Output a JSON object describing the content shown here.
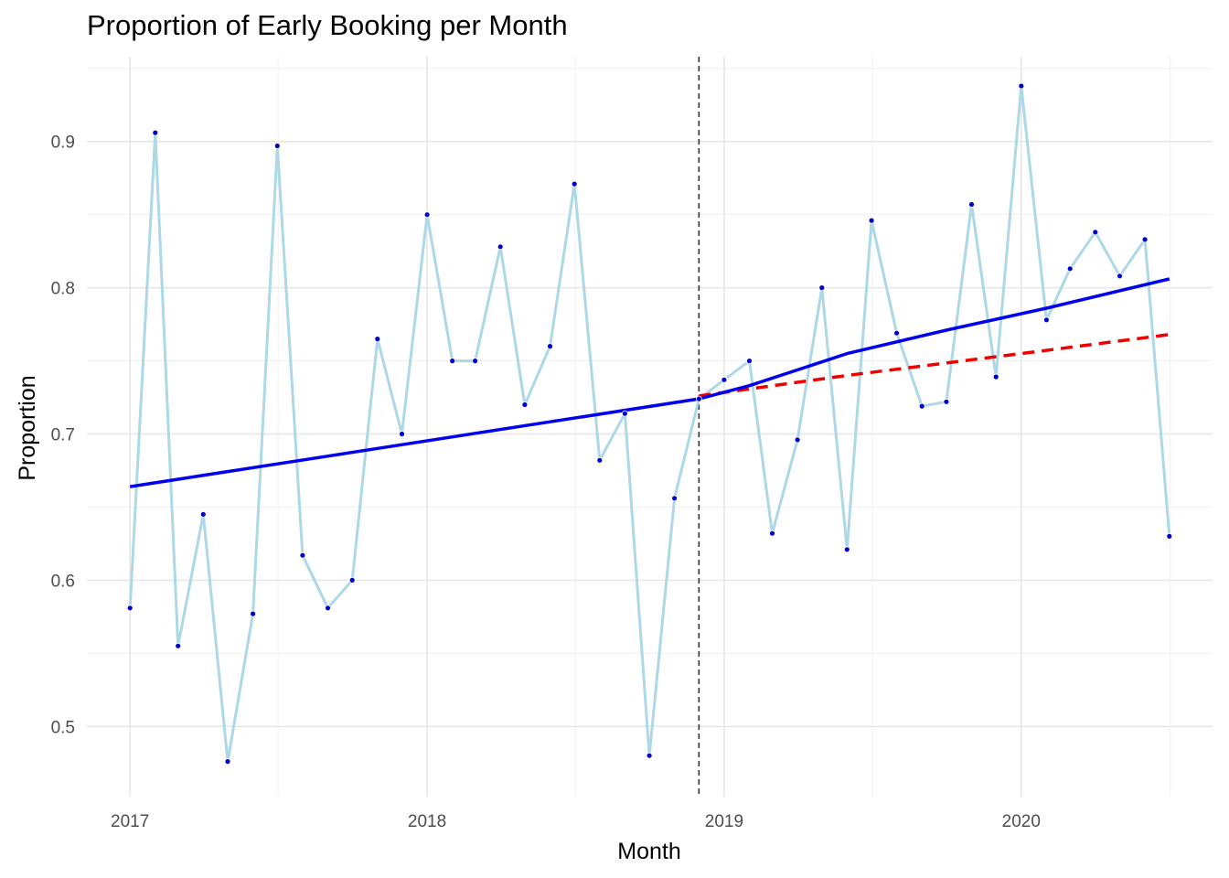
{
  "chart_data": {
    "type": "line",
    "title": "Proportion of Early Booking per Month",
    "xlabel": "Month",
    "ylabel": "Proportion",
    "x_tick_labels": [
      "2017",
      "2018",
      "2019",
      "2020"
    ],
    "y_tick_labels": [
      "0.5",
      "0.6",
      "0.7",
      "0.8",
      "0.9"
    ],
    "x_range": [
      "2016-11-09",
      "2020-08-23"
    ],
    "y_range": [
      0.452,
      0.958
    ],
    "grid": true,
    "intervention_date": "2018-12-01",
    "series": [
      {
        "role": "observed",
        "line_color": "#add8e6",
        "point_color": "#0000cd",
        "x": [
          "2017-01",
          "2017-02",
          "2017-03",
          "2017-04",
          "2017-05",
          "2017-06",
          "2017-07",
          "2017-08",
          "2017-09",
          "2017-10",
          "2017-11",
          "2017-12",
          "2018-01",
          "2018-02",
          "2018-03",
          "2018-04",
          "2018-05",
          "2018-06",
          "2018-07",
          "2018-08",
          "2018-09",
          "2018-10",
          "2018-11",
          "2018-12",
          "2019-01",
          "2019-02",
          "2019-03",
          "2019-04",
          "2019-05",
          "2019-06",
          "2019-07",
          "2019-08",
          "2019-09",
          "2019-10",
          "2019-11",
          "2019-12",
          "2020-01",
          "2020-02",
          "2020-03",
          "2020-04",
          "2020-05",
          "2020-06",
          "2020-07"
        ],
        "values": [
          0.581,
          0.906,
          0.555,
          0.645,
          0.476,
          0.577,
          0.897,
          0.617,
          0.581,
          0.6,
          0.765,
          0.7,
          0.85,
          0.75,
          0.75,
          0.828,
          0.72,
          0.76,
          0.871,
          0.682,
          0.714,
          0.48,
          0.656,
          0.724,
          0.737,
          0.75,
          0.632,
          0.696,
          0.8,
          0.621,
          0.846,
          0.769,
          0.719,
          0.722,
          0.857,
          0.739,
          0.938,
          0.778,
          0.813,
          0.838,
          0.808,
          0.833,
          0.63
        ]
      },
      {
        "role": "fitted trend",
        "line_color": "#0000ee",
        "style": "solid",
        "x": [
          "2017-01",
          "2018-12",
          "2019-02",
          "2019-06",
          "2019-10",
          "2020-02",
          "2020-07"
        ],
        "values": [
          0.664,
          0.724,
          0.733,
          0.755,
          0.771,
          0.786,
          0.806
        ]
      },
      {
        "role": "counterfactual trend",
        "line_color": "#ee0000",
        "style": "dashed",
        "x": [
          "2018-12",
          "2019-06",
          "2020-01",
          "2020-07"
        ],
        "values": [
          0.726,
          0.74,
          0.755,
          0.768
        ]
      }
    ]
  }
}
